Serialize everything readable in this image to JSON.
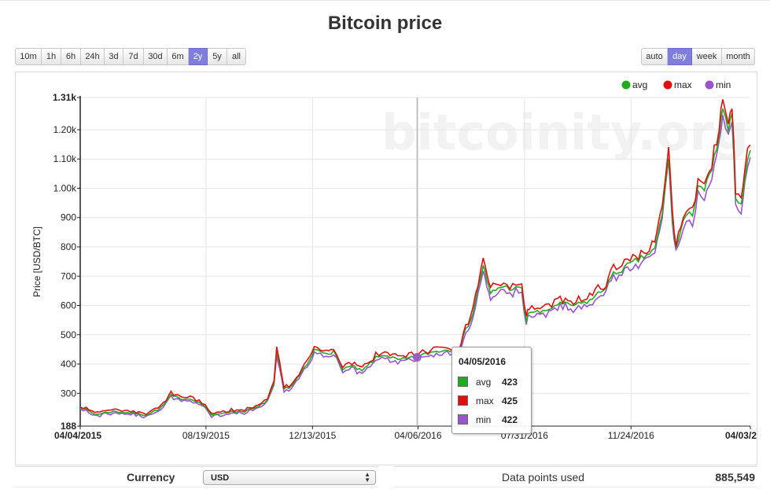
{
  "page": {
    "title": "Bitcoin price"
  },
  "controls": {
    "timespans": [
      {
        "label": "10m",
        "active": false
      },
      {
        "label": "1h",
        "active": false
      },
      {
        "label": "6h",
        "active": false
      },
      {
        "label": "24h",
        "active": false
      },
      {
        "label": "3d",
        "active": false
      },
      {
        "label": "7d",
        "active": false
      },
      {
        "label": "30d",
        "active": false
      },
      {
        "label": "6m",
        "active": false
      },
      {
        "label": "2y",
        "active": true
      },
      {
        "label": "5y",
        "active": false
      },
      {
        "label": "all",
        "active": false
      }
    ],
    "resolutions": [
      {
        "label": "auto",
        "active": false
      },
      {
        "label": "day",
        "active": true
      },
      {
        "label": "week",
        "active": false
      },
      {
        "label": "month",
        "active": false
      }
    ],
    "active_color": "#7f7fdb"
  },
  "chart_data": {
    "type": "line",
    "title": "Bitcoin price",
    "ylabel": "Price [USD/BTC]",
    "xlabel": "",
    "watermark": "bitcoinity.org",
    "ylim": [
      188,
      1310
    ],
    "x_range": [
      "04/04/2015",
      "04/03/2017"
    ],
    "yticks": [
      {
        "value": 188,
        "label": "188",
        "bold": true
      },
      {
        "value": 300,
        "label": "300"
      },
      {
        "value": 400,
        "label": "400"
      },
      {
        "value": 500,
        "label": "500"
      },
      {
        "value": 600,
        "label": "600"
      },
      {
        "value": 700,
        "label": "700"
      },
      {
        "value": 800,
        "label": "800"
      },
      {
        "value": 900,
        "label": "900"
      },
      {
        "value": 1000,
        "label": "1.00k"
      },
      {
        "value": 1100,
        "label": "1.10k"
      },
      {
        "value": 1200,
        "label": "1.20k"
      },
      {
        "value": 1310,
        "label": "1.31k",
        "bold": true
      }
    ],
    "xticks": [
      {
        "date": "2015-04-04",
        "label": "04/04/2015",
        "bold": true
      },
      {
        "date": "2015-08-19",
        "label": "08/19/2015"
      },
      {
        "date": "2015-12-13",
        "label": "12/13/2015"
      },
      {
        "date": "2016-04-06",
        "label": "04/06/2016"
      },
      {
        "date": "2016-07-31",
        "label": "07/31/2016"
      },
      {
        "date": "2016-11-24",
        "label": "11/24/2016"
      },
      {
        "date": "2017-04-03",
        "label": "04/03/2",
        "bold": true
      }
    ],
    "grid": true,
    "legend_position": "top-right",
    "series": [
      {
        "name": "avg",
        "color": "#22aa22"
      },
      {
        "name": "max",
        "color": "#dd1111"
      },
      {
        "name": "min",
        "color": "#9955cc"
      }
    ],
    "avg_points": [
      [
        "2015-04-04",
        255
      ],
      [
        "2015-04-20",
        228
      ],
      [
        "2015-05-10",
        238
      ],
      [
        "2015-06-01",
        232
      ],
      [
        "2015-06-15",
        226
      ],
      [
        "2015-07-01",
        250
      ],
      [
        "2015-07-12",
        292
      ],
      [
        "2015-07-20",
        283
      ],
      [
        "2015-08-05",
        280
      ],
      [
        "2015-08-18",
        256
      ],
      [
        "2015-08-25",
        223
      ],
      [
        "2015-09-10",
        236
      ],
      [
        "2015-09-30",
        239
      ],
      [
        "2015-10-15",
        252
      ],
      [
        "2015-10-25",
        278
      ],
      [
        "2015-11-01",
        330
      ],
      [
        "2015-11-04",
        440
      ],
      [
        "2015-11-07",
        395
      ],
      [
        "2015-11-12",
        315
      ],
      [
        "2015-11-20",
        325
      ],
      [
        "2015-12-01",
        370
      ],
      [
        "2015-12-10",
        410
      ],
      [
        "2015-12-15",
        448
      ],
      [
        "2015-12-25",
        440
      ],
      [
        "2016-01-05",
        440
      ],
      [
        "2016-01-15",
        385
      ],
      [
        "2016-01-25",
        392
      ],
      [
        "2016-02-05",
        375
      ],
      [
        "2016-02-20",
        420
      ],
      [
        "2016-03-01",
        432
      ],
      [
        "2016-03-15",
        413
      ],
      [
        "2016-04-05",
        423
      ],
      [
        "2016-04-20",
        440
      ],
      [
        "2016-05-05",
        448
      ],
      [
        "2016-05-20",
        445
      ],
      [
        "2016-05-28",
        515
      ],
      [
        "2016-06-05",
        575
      ],
      [
        "2016-06-16",
        740
      ],
      [
        "2016-06-20",
        680
      ],
      [
        "2016-06-24",
        640
      ],
      [
        "2016-07-05",
        665
      ],
      [
        "2016-07-15",
        660
      ],
      [
        "2016-07-28",
        655
      ],
      [
        "2016-08-02",
        545
      ],
      [
        "2016-08-05",
        580
      ],
      [
        "2016-08-20",
        575
      ],
      [
        "2016-09-05",
        605
      ],
      [
        "2016-09-25",
        600
      ],
      [
        "2016-10-10",
        616
      ],
      [
        "2016-10-25",
        655
      ],
      [
        "2016-11-05",
        705
      ],
      [
        "2016-11-20",
        735
      ],
      [
        "2016-12-05",
        760
      ],
      [
        "2016-12-20",
        790
      ],
      [
        "2016-12-28",
        910
      ],
      [
        "2017-01-04",
        1110
      ],
      [
        "2017-01-08",
        900
      ],
      [
        "2017-01-12",
        790
      ],
      [
        "2017-01-20",
        890
      ],
      [
        "2017-01-30",
        915
      ],
      [
        "2017-02-05",
        1015
      ],
      [
        "2017-02-12",
        995
      ],
      [
        "2017-02-20",
        1060
      ],
      [
        "2017-02-28",
        1180
      ],
      [
        "2017-03-04",
        1265
      ],
      [
        "2017-03-10",
        1200
      ],
      [
        "2017-03-14",
        1240
      ],
      [
        "2017-03-18",
        980
      ],
      [
        "2017-03-24",
        940
      ],
      [
        "2017-03-28",
        1040
      ],
      [
        "2017-04-03",
        1130
      ]
    ],
    "tooltip": {
      "date": "04/05/2016",
      "rows": [
        {
          "label": "avg",
          "value": "423",
          "color": "#22aa22"
        },
        {
          "label": "max",
          "value": "425",
          "color": "#dd1111"
        },
        {
          "label": "min",
          "value": "422",
          "color": "#9955cc"
        }
      ]
    },
    "hover_date": "2016-04-05",
    "hover_value": 423
  },
  "footer": {
    "currency_label": "Currency",
    "currency_value": "USD",
    "datapoints_label": "Data points used",
    "datapoints_value": "885,549"
  }
}
